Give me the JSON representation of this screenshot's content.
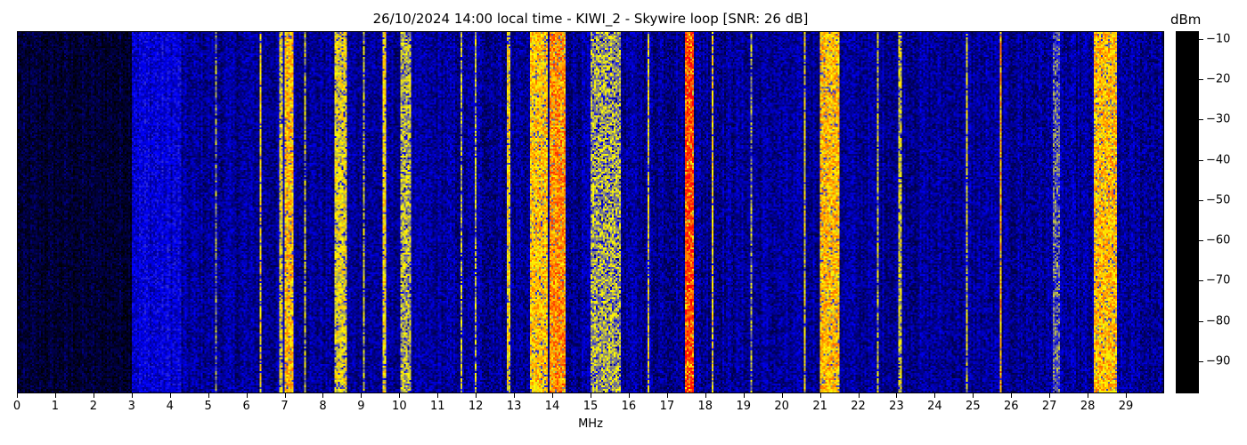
{
  "chart_data": {
    "type": "heatmap",
    "title": "26/10/2024 14:00 local time - KIWI_2 - Skywire loop [SNR: 26 dB]",
    "xlabel": "MHz",
    "ylabel": "",
    "xlim": [
      0,
      30
    ],
    "x_ticks": [
      "0",
      "1",
      "2",
      "3",
      "4",
      "5",
      "6",
      "7",
      "8",
      "9",
      "10",
      "11",
      "12",
      "13",
      "14",
      "15",
      "16",
      "17",
      "18",
      "19",
      "20",
      "21",
      "22",
      "23",
      "24",
      "25",
      "26",
      "27",
      "28",
      "29"
    ],
    "colorbar": {
      "label": "dBm",
      "range": [
        -98,
        -8
      ],
      "ticks": [
        "−10",
        "−20",
        "−30",
        "−40",
        "−50",
        "−60",
        "−70",
        "−80",
        "−90"
      ],
      "tick_values": [
        -10,
        -20,
        -30,
        -40,
        -50,
        -60,
        -70,
        -80,
        -90
      ],
      "colormap": [
        {
          "dbm": -98,
          "color": "#000000"
        },
        {
          "dbm": -90,
          "color": "#000050"
        },
        {
          "dbm": -80,
          "color": "#0000ff"
        },
        {
          "dbm": -70,
          "color": "#808080"
        },
        {
          "dbm": -62,
          "color": "#ffff00"
        },
        {
          "dbm": -52,
          "color": "#ff8c00"
        },
        {
          "dbm": -42,
          "color": "#ff0000"
        },
        {
          "dbm": -30,
          "color": "#ff0080"
        },
        {
          "dbm": -20,
          "color": "#ff00ff"
        },
        {
          "dbm": -8,
          "color": "#ffc8ff"
        }
      ]
    },
    "background_dbm": [
      {
        "from_mhz": 0,
        "to_mhz": 3,
        "dbm": -93
      },
      {
        "from_mhz": 3,
        "to_mhz": 4.3,
        "dbm": -82
      },
      {
        "from_mhz": 4.3,
        "to_mhz": 30,
        "dbm": -86
      }
    ],
    "signals": [
      {
        "from_mhz": 5.18,
        "to_mhz": 5.24,
        "dbm": -70
      },
      {
        "from_mhz": 6.32,
        "to_mhz": 6.38,
        "dbm": -60
      },
      {
        "from_mhz": 6.85,
        "to_mhz": 6.95,
        "dbm": -63
      },
      {
        "from_mhz": 7.0,
        "to_mhz": 7.2,
        "dbm": -56
      },
      {
        "from_mhz": 7.48,
        "to_mhz": 7.53,
        "dbm": -65
      },
      {
        "from_mhz": 8.3,
        "to_mhz": 8.6,
        "dbm": -62
      },
      {
        "from_mhz": 9.03,
        "to_mhz": 9.08,
        "dbm": -65
      },
      {
        "from_mhz": 9.57,
        "to_mhz": 9.63,
        "dbm": -60
      },
      {
        "from_mhz": 10.0,
        "to_mhz": 10.3,
        "dbm": -66
      },
      {
        "from_mhz": 11.58,
        "to_mhz": 11.63,
        "dbm": -66
      },
      {
        "from_mhz": 11.97,
        "to_mhz": 12.03,
        "dbm": -65
      },
      {
        "from_mhz": 12.82,
        "to_mhz": 12.9,
        "dbm": -60
      },
      {
        "from_mhz": 13.4,
        "to_mhz": 13.9,
        "dbm": -57
      },
      {
        "from_mhz": 13.95,
        "to_mhz": 14.35,
        "dbm": -52
      },
      {
        "from_mhz": 15.0,
        "to_mhz": 15.8,
        "dbm": -67
      },
      {
        "from_mhz": 16.48,
        "to_mhz": 16.53,
        "dbm": -62
      },
      {
        "from_mhz": 17.45,
        "to_mhz": 17.72,
        "dbm": -46
      },
      {
        "from_mhz": 18.18,
        "to_mhz": 18.23,
        "dbm": -60
      },
      {
        "from_mhz": 19.18,
        "to_mhz": 19.24,
        "dbm": -68
      },
      {
        "from_mhz": 20.58,
        "to_mhz": 20.64,
        "dbm": -62
      },
      {
        "from_mhz": 21.0,
        "to_mhz": 21.5,
        "dbm": -56
      },
      {
        "from_mhz": 22.48,
        "to_mhz": 22.53,
        "dbm": -65
      },
      {
        "from_mhz": 23.08,
        "to_mhz": 23.13,
        "dbm": -65
      },
      {
        "from_mhz": 24.83,
        "to_mhz": 24.87,
        "dbm": -64
      },
      {
        "from_mhz": 25.72,
        "to_mhz": 25.78,
        "dbm": -55
      },
      {
        "from_mhz": 27.1,
        "to_mhz": 27.3,
        "dbm": -72
      },
      {
        "from_mhz": 28.2,
        "to_mhz": 28.8,
        "dbm": -56
      }
    ]
  }
}
